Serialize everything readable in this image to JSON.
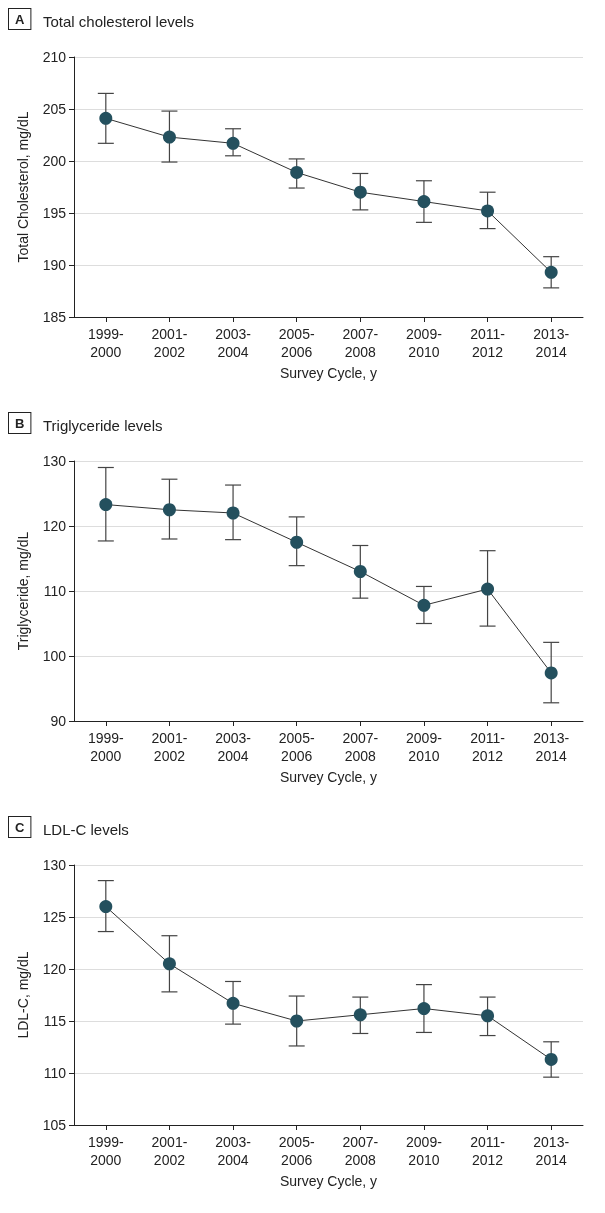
{
  "chart_data": [
    {
      "type": "line",
      "title": "Total cholesterol levels",
      "annotations": [
        "A"
      ],
      "xlabel": "Survey Cycle, y",
      "ylabel": "Total Cholesterol, mg/dL",
      "categories": [
        "1999-2000",
        "2001-2002",
        "2003-2004",
        "2005-2006",
        "2007-2008",
        "2009-2010",
        "2011-2012",
        "2013-2014"
      ],
      "series": [
        {
          "color": "#24505e",
          "values": [
            204.1,
            202.3,
            201.7,
            198.9,
            197.0,
            196.1,
            195.2,
            189.3
          ],
          "errors": [
            [
              201.7,
              206.5
            ],
            [
              199.9,
              204.8
            ],
            [
              200.5,
              203.1
            ],
            [
              197.4,
              200.2
            ],
            [
              195.3,
              198.8
            ],
            [
              194.1,
              198.1
            ],
            [
              193.5,
              197.0
            ],
            [
              187.8,
              190.8
            ]
          ]
        }
      ],
      "ylim": [
        185,
        210
      ],
      "yticks": [
        185,
        190,
        195,
        200,
        205,
        210
      ],
      "grid": "y",
      "marker": "circle",
      "line_style": "solid"
    },
    {
      "type": "line",
      "title": "Triglyceride levels",
      "annotations": [
        "B"
      ],
      "xlabel": "Survey Cycle, y",
      "ylabel": "Triglyceride, mg/dL",
      "categories": [
        "1999-2000",
        "2001-2002",
        "2003-2004",
        "2005-2006",
        "2007-2008",
        "2009-2010",
        "2011-2012",
        "2013-2014"
      ],
      "series": [
        {
          "color": "#24505e",
          "values": [
            123.3,
            122.5,
            122.0,
            117.5,
            113.0,
            107.8,
            110.3,
            97.4
          ],
          "errors": [
            [
              117.7,
              129.0
            ],
            [
              118.0,
              127.2
            ],
            [
              117.9,
              126.3
            ],
            [
              113.9,
              121.4
            ],
            [
              108.9,
              117.0
            ],
            [
              105.0,
              110.7
            ],
            [
              104.6,
              116.2
            ],
            [
              92.8,
              102.1
            ]
          ]
        }
      ],
      "ylim": [
        90,
        130
      ],
      "yticks": [
        90,
        100,
        110,
        120,
        130
      ],
      "grid": "y",
      "marker": "circle",
      "line_style": "solid"
    },
    {
      "type": "line",
      "title": "LDL-C levels",
      "annotations": [
        "C"
      ],
      "xlabel": "Survey Cycle, y",
      "ylabel": "LDL-C, mg/dL",
      "categories": [
        "1999-2000",
        "2001-2002",
        "2003-2004",
        "2005-2006",
        "2007-2008",
        "2009-2010",
        "2011-2012",
        "2013-2014"
      ],
      "series": [
        {
          "color": "#24505e",
          "values": [
            126.0,
            120.5,
            116.7,
            115.0,
            115.6,
            116.2,
            115.5,
            111.3
          ],
          "errors": [
            [
              123.6,
              128.5
            ],
            [
              117.8,
              123.2
            ],
            [
              114.7,
              118.8
            ],
            [
              112.6,
              117.4
            ],
            [
              113.8,
              117.3
            ],
            [
              113.9,
              118.5
            ],
            [
              113.6,
              117.3
            ],
            [
              109.6,
              113.0
            ]
          ]
        }
      ],
      "ylim": [
        105,
        130
      ],
      "yticks": [
        105,
        110,
        115,
        120,
        125,
        130
      ],
      "grid": "y",
      "marker": "circle",
      "line_style": "solid"
    }
  ]
}
